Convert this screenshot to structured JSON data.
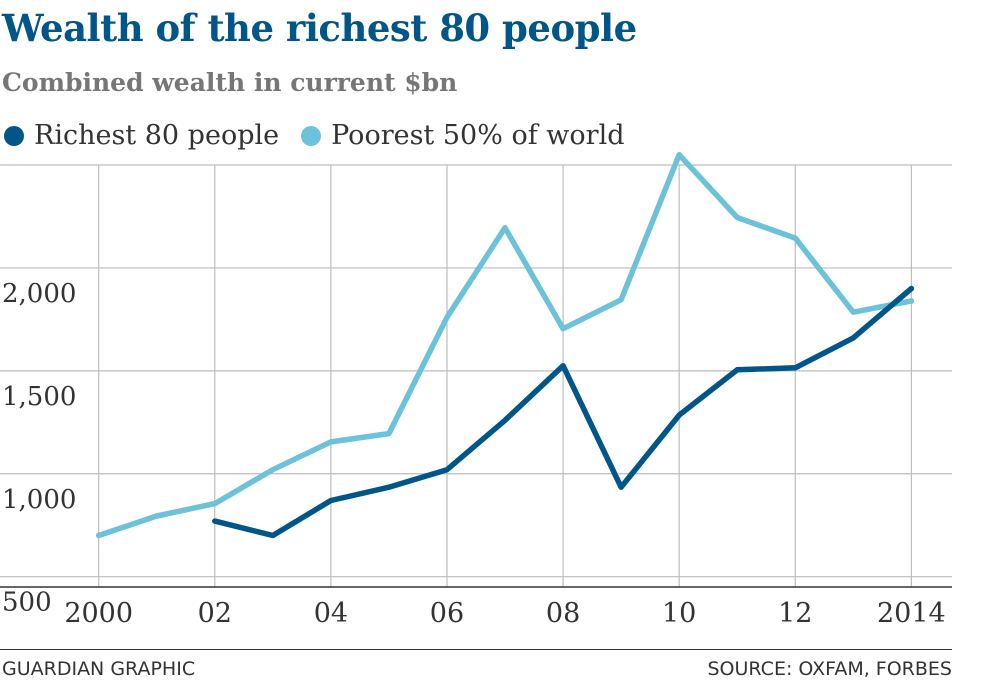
{
  "header": {
    "title": "Wealth of the richest 80 people",
    "subtitle": "Combined wealth in current $bn"
  },
  "footer": {
    "credit": "GUARDIAN GRAPHIC",
    "source": "SOURCE: OXFAM, FORBES"
  },
  "colors": {
    "richest": "#005689",
    "poorest": "#6cc3d9",
    "grid": "#bdbdbd",
    "axis": "#333333"
  },
  "chart_data": {
    "type": "line",
    "title": "Wealth of the richest 80 people",
    "subtitle": "Combined wealth in current $bn",
    "legend_position": "top-left",
    "grid": true,
    "x_ticks": [
      {
        "value": 2000,
        "label": "2000"
      },
      {
        "value": 2002,
        "label": "02"
      },
      {
        "value": 2004,
        "label": "04"
      },
      {
        "value": 2006,
        "label": "06"
      },
      {
        "value": 2008,
        "label": "08"
      },
      {
        "value": 2010,
        "label": "10"
      },
      {
        "value": 2012,
        "label": "12"
      },
      {
        "value": 2014,
        "label": "2014"
      }
    ],
    "y_ticks": [
      {
        "value": 500,
        "label": "500"
      },
      {
        "value": 1000,
        "label": "1,000"
      },
      {
        "value": 1500,
        "label": "1,500"
      },
      {
        "value": 2000,
        "label": "2,000"
      }
    ],
    "xlim": [
      1998.3,
      2014.7
    ],
    "ylim": [
      450,
      2500
    ],
    "series": [
      {
        "name": "Richest 80 people",
        "color": "#005689",
        "x": [
          2002,
          2003,
          2004,
          2005,
          2006,
          2007,
          2008,
          2009,
          2010,
          2011,
          2012,
          2013,
          2014
        ],
        "y": [
          770,
          700,
          870,
          935,
          1020,
          1260,
          1525,
          935,
          1285,
          1505,
          1515,
          1660,
          1900
        ]
      },
      {
        "name": "Poorest 50% of world",
        "color": "#6cc3d9",
        "x": [
          2000,
          2001,
          2002,
          2003,
          2004,
          2005,
          2006,
          2007,
          2008,
          2009,
          2010,
          2011,
          2012,
          2013,
          2014
        ],
        "y": [
          700,
          795,
          855,
          1020,
          1155,
          1195,
          1760,
          2195,
          1705,
          1845,
          2550,
          2245,
          2145,
          1785,
          1840
        ]
      }
    ]
  }
}
